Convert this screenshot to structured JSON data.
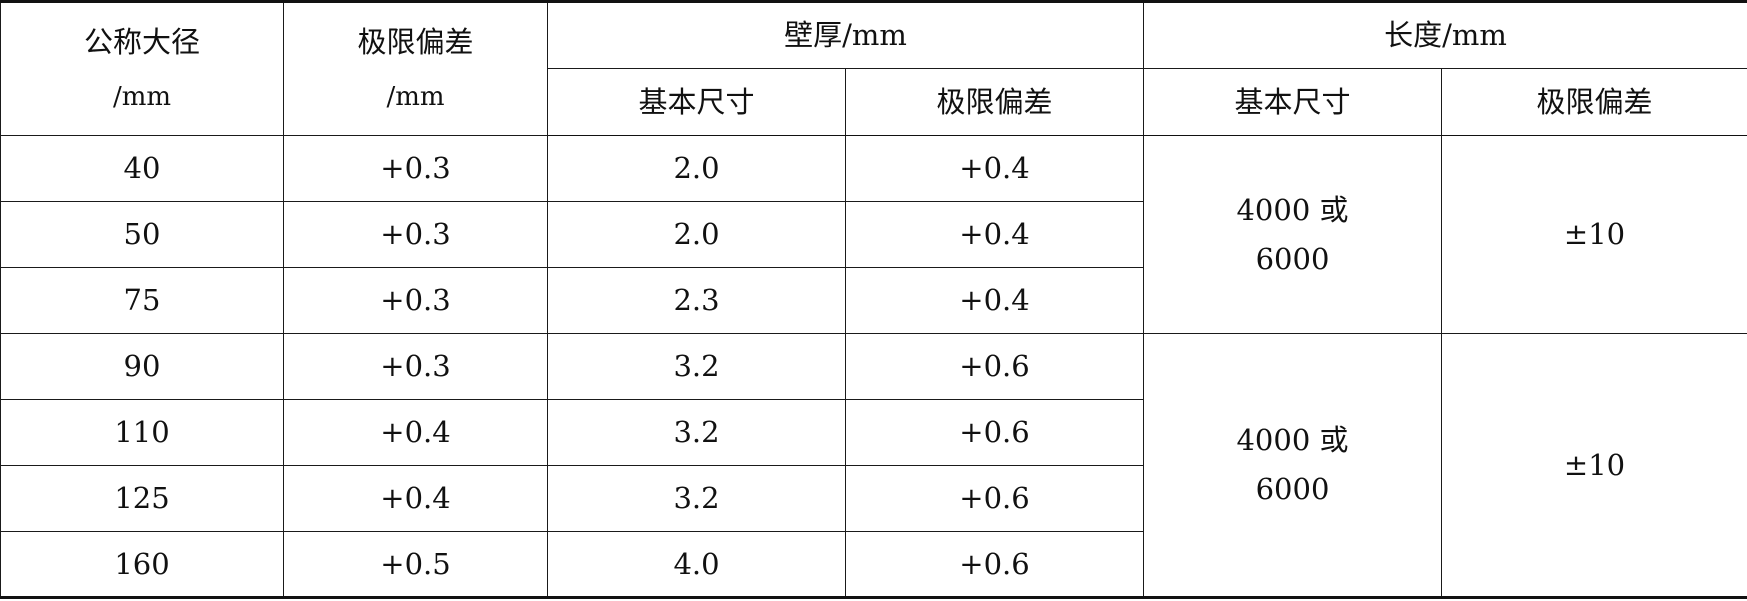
{
  "table": {
    "header": {
      "nominal_diameter_line1": "公称大径",
      "nominal_diameter_line2": "/mm",
      "tolerance_line1": "极限偏差",
      "tolerance_line2": "/mm",
      "wall_thickness": "壁厚/mm",
      "length": "长度/mm",
      "wall_basic": "基本尺寸",
      "wall_tol": "极限偏差",
      "len_basic": "基本尺寸",
      "len_tol": "极限偏差"
    },
    "rows": [
      {
        "diameter": "40",
        "tolerance": "+0.3",
        "wall": "2.0",
        "wall_tol": "+0.4"
      },
      {
        "diameter": "50",
        "tolerance": "+0.3",
        "wall": "2.0",
        "wall_tol": "+0.4"
      },
      {
        "diameter": "75",
        "tolerance": "+0.3",
        "wall": "2.3",
        "wall_tol": "+0.4"
      },
      {
        "diameter": "90",
        "tolerance": "+0.3",
        "wall": "3.2",
        "wall_tol": "+0.6"
      },
      {
        "diameter": "110",
        "tolerance": "+0.4",
        "wall": "3.2",
        "wall_tol": "+0.6"
      },
      {
        "diameter": "125",
        "tolerance": "+0.4",
        "wall": "3.2",
        "wall_tol": "+0.6"
      },
      {
        "diameter": "160",
        "tolerance": "+0.5",
        "wall": "4.0",
        "wall_tol": "+0.6"
      }
    ],
    "groups": [
      {
        "length_line1": "4000 或",
        "length_line2": "6000",
        "length_tol": "±10"
      },
      {
        "length_line1": "4000 或",
        "length_line2": "6000",
        "length_tol": "±10"
      }
    ]
  }
}
